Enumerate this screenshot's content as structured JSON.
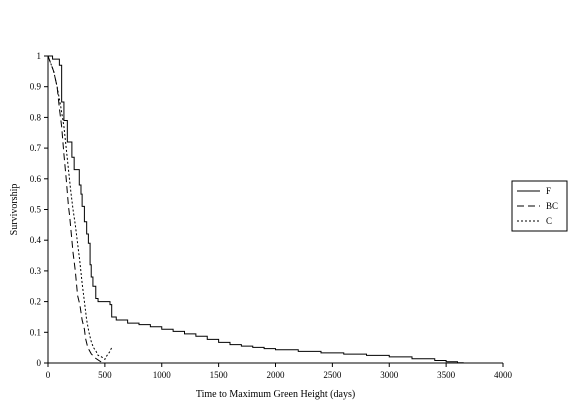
{
  "chart_data": {
    "type": "line",
    "title": "",
    "xlabel": "Time to Maximum Green Height (days)",
    "ylabel": "Survivorship",
    "xlim": [
      0,
      4000
    ],
    "ylim": [
      0,
      1
    ],
    "xticks": [
      0,
      500,
      1000,
      1500,
      2000,
      2500,
      3000,
      3500,
      4000
    ],
    "yticks": [
      0,
      0.1,
      0.2,
      0.3,
      0.4,
      0.5,
      0.6,
      0.7,
      0.8,
      0.9,
      1
    ],
    "grid": false,
    "legend_position": "right",
    "series": [
      {
        "name": "F",
        "style": "solid",
        "color": "#000000",
        "step": true,
        "points": [
          [
            0,
            1
          ],
          [
            40,
            0.99
          ],
          [
            100,
            0.97
          ],
          [
            120,
            0.85
          ],
          [
            140,
            0.79
          ],
          [
            170,
            0.72
          ],
          [
            190,
            0.72
          ],
          [
            210,
            0.67
          ],
          [
            230,
            0.63
          ],
          [
            260,
            0.63
          ],
          [
            275,
            0.58
          ],
          [
            290,
            0.55
          ],
          [
            300,
            0.51
          ],
          [
            320,
            0.46
          ],
          [
            340,
            0.42
          ],
          [
            355,
            0.39
          ],
          [
            370,
            0.32
          ],
          [
            380,
            0.28
          ],
          [
            395,
            0.25
          ],
          [
            405,
            0.25
          ],
          [
            420,
            0.21
          ],
          [
            440,
            0.2
          ],
          [
            480,
            0.2
          ],
          [
            500,
            0.2
          ],
          [
            530,
            0.2
          ],
          [
            545,
            0.19
          ],
          [
            560,
            0.15
          ],
          [
            600,
            0.14
          ],
          [
            700,
            0.13
          ],
          [
            800,
            0.125
          ],
          [
            900,
            0.118
          ],
          [
            1000,
            0.11
          ],
          [
            1100,
            0.103
          ],
          [
            1200,
            0.095
          ],
          [
            1300,
            0.087
          ],
          [
            1400,
            0.077
          ],
          [
            1500,
            0.067
          ],
          [
            1600,
            0.06
          ],
          [
            1700,
            0.055
          ],
          [
            1800,
            0.051
          ],
          [
            1900,
            0.047
          ],
          [
            2000,
            0.043
          ],
          [
            2200,
            0.038
          ],
          [
            2400,
            0.033
          ],
          [
            2600,
            0.029
          ],
          [
            2800,
            0.025
          ],
          [
            3000,
            0.02
          ],
          [
            3200,
            0.014
          ],
          [
            3400,
            0.008
          ],
          [
            3500,
            0.004
          ],
          [
            3600,
            0.001
          ],
          [
            3650,
            0
          ]
        ]
      },
      {
        "name": "BC",
        "style": "dashed",
        "color": "#000000",
        "step": false,
        "points": [
          [
            0,
            1
          ],
          [
            50,
            0.95
          ],
          [
            80,
            0.9
          ],
          [
            100,
            0.83
          ],
          [
            120,
            0.77
          ],
          [
            140,
            0.68
          ],
          [
            160,
            0.6
          ],
          [
            180,
            0.51
          ],
          [
            190,
            0.48
          ],
          [
            210,
            0.4
          ],
          [
            220,
            0.36
          ],
          [
            240,
            0.3
          ],
          [
            260,
            0.22
          ],
          [
            280,
            0.19
          ],
          [
            300,
            0.14
          ],
          [
            320,
            0.11
          ],
          [
            330,
            0.08
          ],
          [
            350,
            0.05
          ],
          [
            380,
            0.03
          ],
          [
            420,
            0.015
          ],
          [
            460,
            0.005
          ],
          [
            500,
            0
          ]
        ]
      },
      {
        "name": "C",
        "style": "dotted",
        "color": "#000000",
        "step": false,
        "points": [
          [
            0,
            1
          ],
          [
            50,
            0.95
          ],
          [
            80,
            0.9
          ],
          [
            110,
            0.84
          ],
          [
            140,
            0.77
          ],
          [
            160,
            0.7
          ],
          [
            180,
            0.63
          ],
          [
            200,
            0.56
          ],
          [
            220,
            0.5
          ],
          [
            240,
            0.45
          ],
          [
            260,
            0.39
          ],
          [
            280,
            0.33
          ],
          [
            300,
            0.26
          ],
          [
            320,
            0.2
          ],
          [
            340,
            0.14
          ],
          [
            360,
            0.1
          ],
          [
            380,
            0.07
          ],
          [
            400,
            0.05
          ],
          [
            420,
            0.04
          ],
          [
            440,
            0.025
          ],
          [
            470,
            0.02
          ],
          [
            490,
            0.015
          ],
          [
            500,
            0.012
          ],
          [
            510,
            0.02
          ],
          [
            540,
            0.035
          ],
          [
            560,
            0.05
          ]
        ]
      }
    ]
  }
}
